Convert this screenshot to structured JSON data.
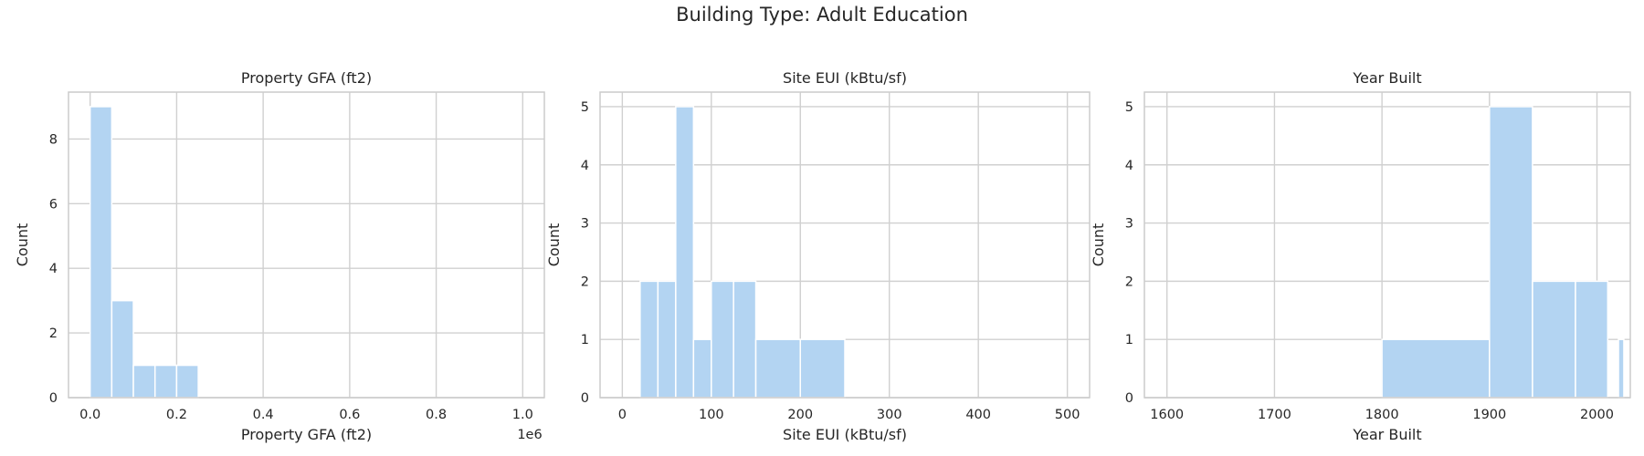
{
  "figure": {
    "suptitle": "Building Type: Adult Education"
  },
  "colors": {
    "bar": "#b3d4f2",
    "grid": "#d0d0d0",
    "spine": "#cccccc",
    "text": "#262626"
  },
  "chart_data": [
    {
      "type": "bar",
      "title": "Property GFA (ft2)",
      "xlabel": "Property GFA (ft2)",
      "ylabel": "Count",
      "xlim": [
        -50000,
        1050000
      ],
      "ylim": [
        0,
        9.45
      ],
      "xticks": [
        0,
        200000,
        400000,
        600000,
        800000,
        1000000
      ],
      "xtick_labels": [
        "0.0",
        "0.2",
        "0.4",
        "0.6",
        "0.8",
        "1.0"
      ],
      "x_offset_label": "1e6",
      "yticks": [
        0,
        2,
        4,
        6,
        8
      ],
      "ytick_labels": [
        "0",
        "2",
        "4",
        "6",
        "8"
      ],
      "bins": [
        {
          "x0": 0,
          "x1": 50000,
          "count": 9
        },
        {
          "x0": 50000,
          "x1": 100000,
          "count": 3
        },
        {
          "x0": 100000,
          "x1": 150000,
          "count": 1
        },
        {
          "x0": 150000,
          "x1": 200000,
          "count": 1
        },
        {
          "x0": 200000,
          "x1": 250000,
          "count": 1
        }
      ],
      "grid": true
    },
    {
      "type": "bar",
      "title": "Site EUI (kBtu/sf)",
      "xlabel": "Site EUI (kBtu/sf)",
      "ylabel": "Count",
      "xlim": [
        -25,
        525
      ],
      "ylim": [
        0,
        5.25
      ],
      "xticks": [
        0,
        100,
        200,
        300,
        400,
        500
      ],
      "xtick_labels": [
        "0",
        "100",
        "200",
        "300",
        "400",
        "500"
      ],
      "yticks": [
        0,
        1,
        2,
        3,
        4,
        5
      ],
      "ytick_labels": [
        "0",
        "1",
        "2",
        "3",
        "4",
        "5"
      ],
      "bins": [
        {
          "x0": 20,
          "x1": 40,
          "count": 2
        },
        {
          "x0": 40,
          "x1": 60,
          "count": 2
        },
        {
          "x0": 60,
          "x1": 80,
          "count": 5
        },
        {
          "x0": 80,
          "x1": 100,
          "count": 1
        },
        {
          "x0": 100,
          "x1": 125,
          "count": 2
        },
        {
          "x0": 125,
          "x1": 150,
          "count": 2
        },
        {
          "x0": 150,
          "x1": 200,
          "count": 1
        },
        {
          "x0": 200,
          "x1": 250,
          "count": 1
        }
      ],
      "grid": true
    },
    {
      "type": "bar",
      "title": "Year Built",
      "xlabel": "Year Built",
      "ylabel": "Count",
      "xlim": [
        1579,
        2031
      ],
      "ylim": [
        0,
        5.25
      ],
      "xticks": [
        1600,
        1700,
        1800,
        1900,
        2000
      ],
      "xtick_labels": [
        "1600",
        "1700",
        "1800",
        "1900",
        "2000"
      ],
      "yticks": [
        0,
        1,
        2,
        3,
        4,
        5
      ],
      "ytick_labels": [
        "0",
        "1",
        "2",
        "3",
        "4",
        "5"
      ],
      "bins": [
        {
          "x0": 1800,
          "x1": 1900,
          "count": 1
        },
        {
          "x0": 1900,
          "x1": 1940,
          "count": 5
        },
        {
          "x0": 1940,
          "x1": 1980,
          "count": 2
        },
        {
          "x0": 1980,
          "x1": 2010,
          "count": 2
        },
        {
          "x0": 2020,
          "x1": 2025,
          "count": 1
        }
      ],
      "grid": true
    }
  ]
}
